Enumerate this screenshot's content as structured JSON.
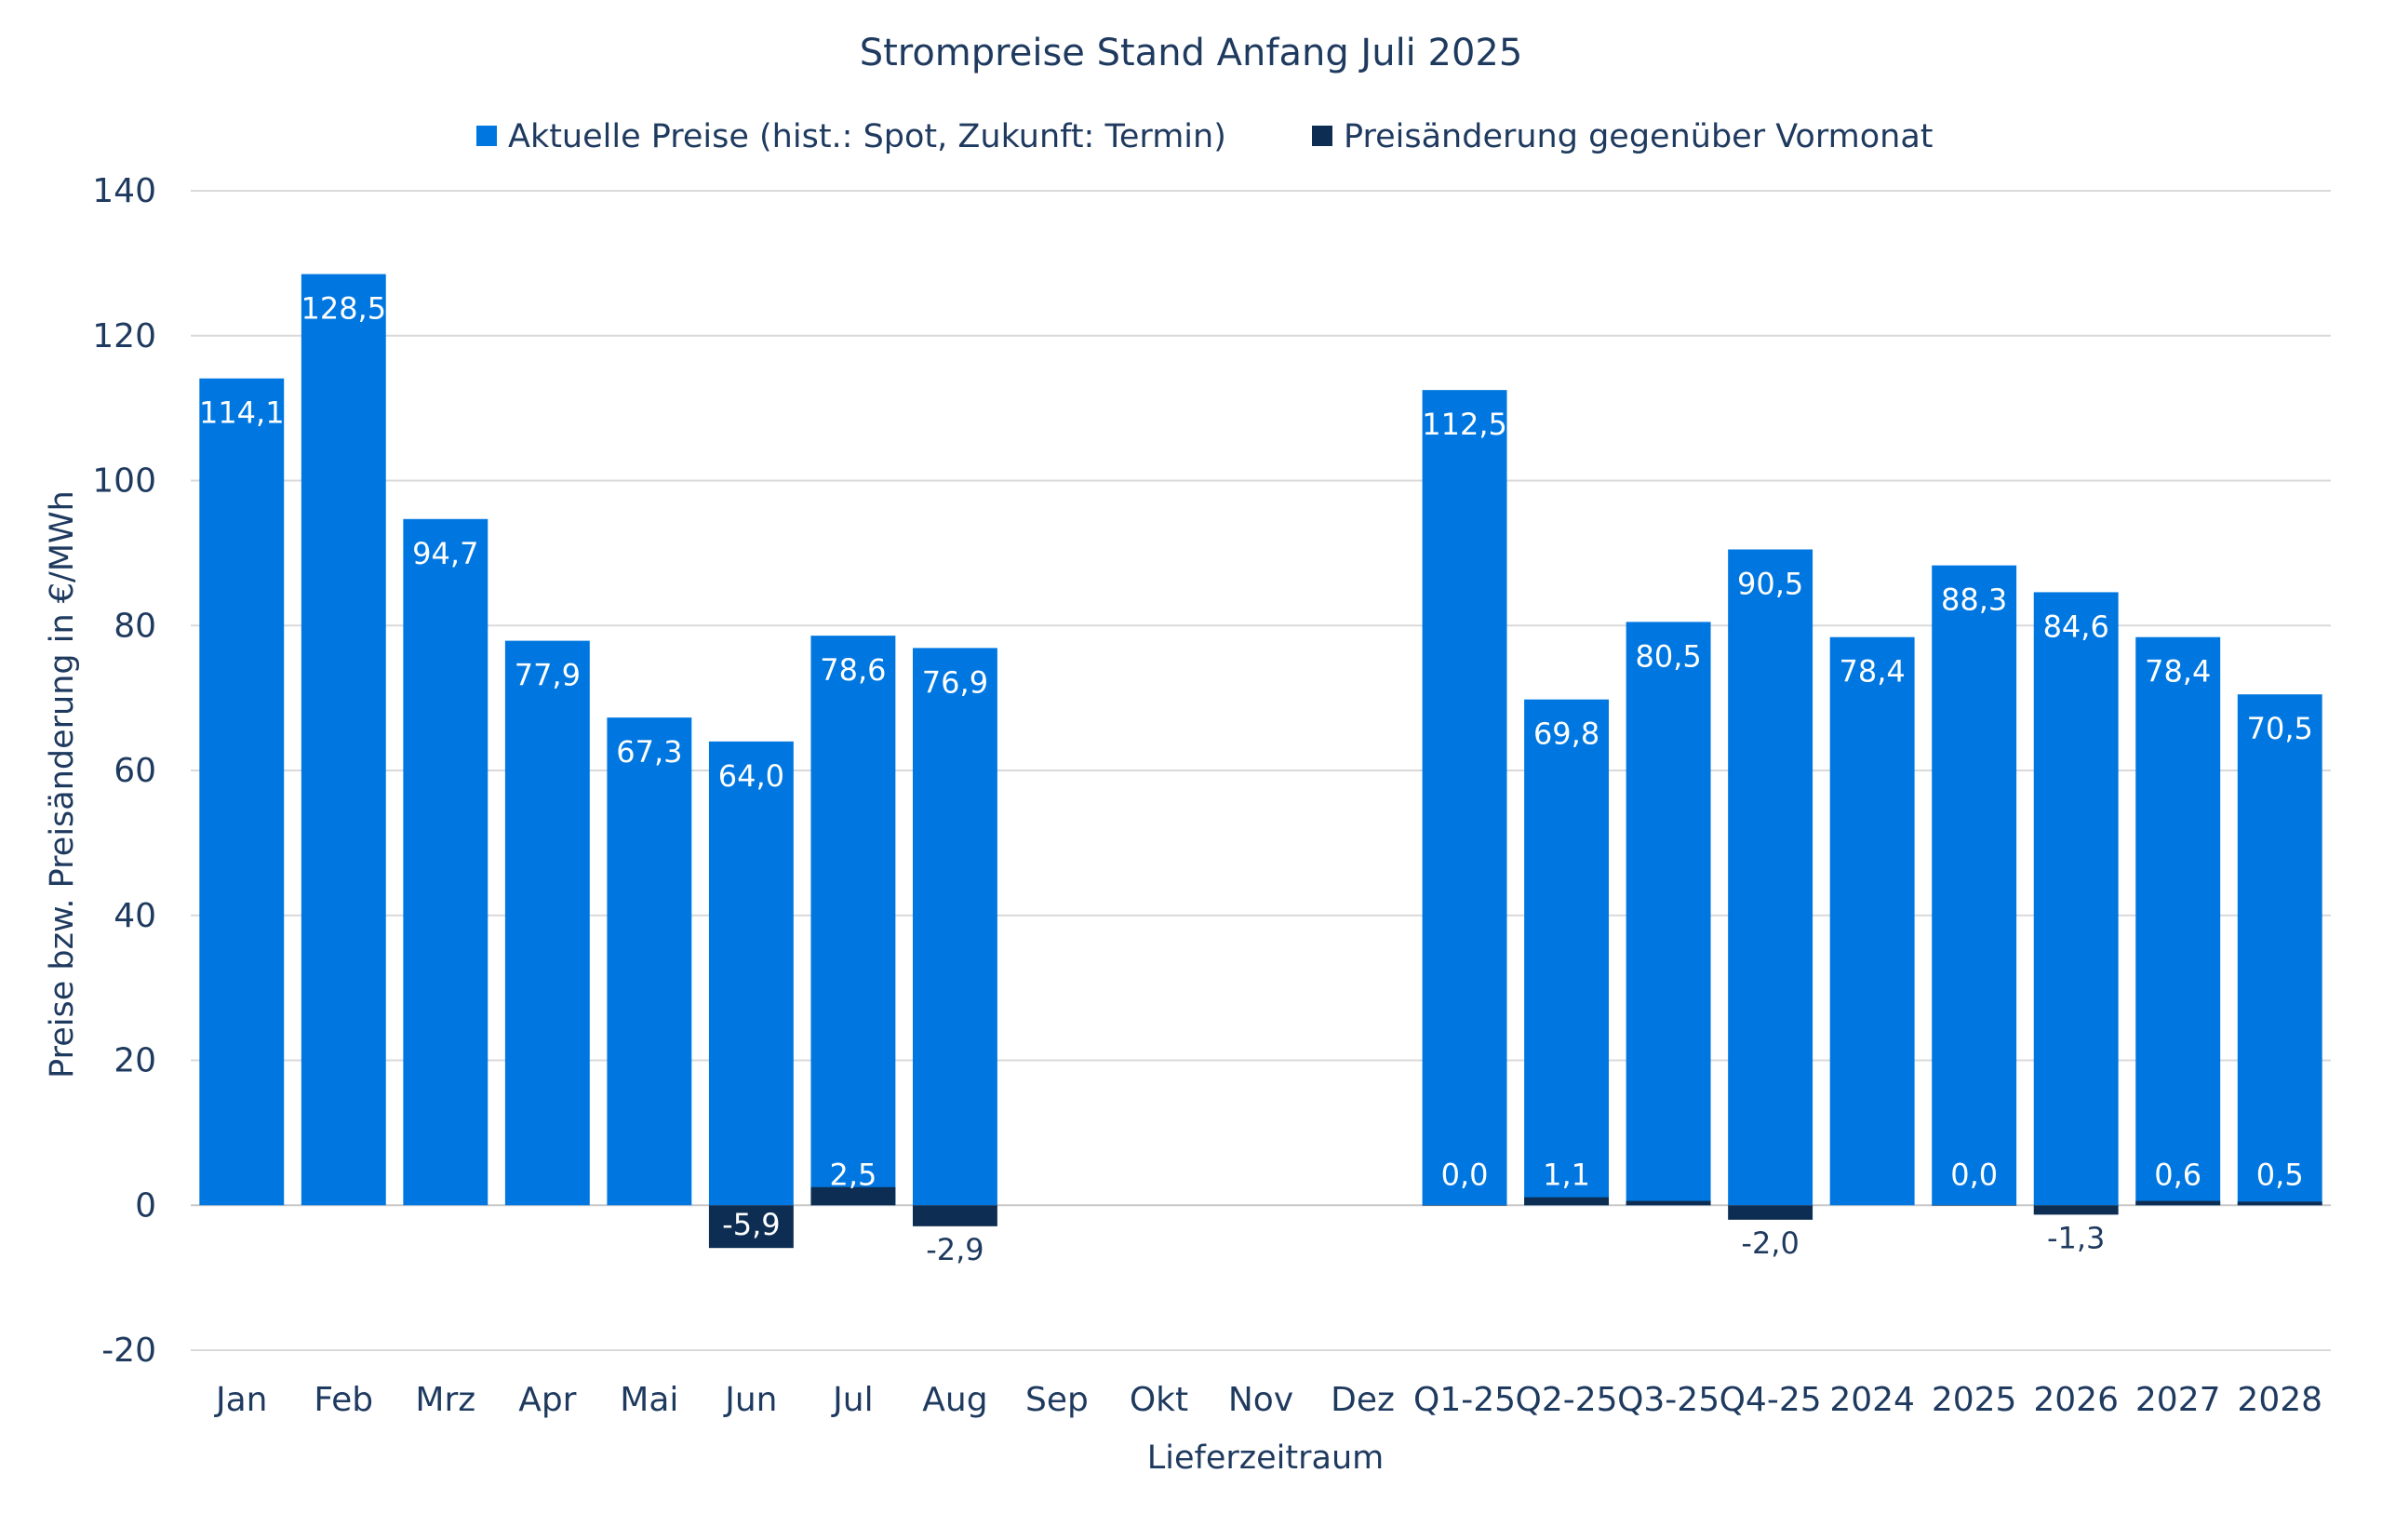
{
  "chart_data": {
    "type": "bar",
    "title": "Strompreise Stand Anfang Juli 2025",
    "xlabel": "Lieferzeitraum",
    "ylabel": "Preise bzw. Preisänderung in €/MWh",
    "ylim": [
      -20,
      140
    ],
    "yticks": [
      -20,
      0,
      20,
      40,
      60,
      80,
      100,
      120,
      140
    ],
    "grid": true,
    "legend_position": "top",
    "categories": [
      "Jan",
      "Feb",
      "Mrz",
      "Apr",
      "Mai",
      "Jun",
      "Jul",
      "Aug",
      "Sep",
      "Okt",
      "Nov",
      "Dez",
      "Q1-25",
      "Q2-25",
      "Q3-25",
      "Q4-25",
      "2024",
      "2025",
      "2026",
      "2027",
      "2028"
    ],
    "series": [
      {
        "name": "Aktuelle Preise (hist.: Spot, Zukunft: Termin)",
        "color": "#0077e0",
        "values": [
          114.1,
          128.5,
          94.7,
          77.9,
          67.3,
          64.0,
          78.6,
          76.9,
          null,
          null,
          null,
          null,
          112.5,
          69.8,
          80.5,
          90.5,
          78.4,
          88.3,
          84.6,
          78.4,
          70.5
        ],
        "labels": [
          "114,1",
          "128,5",
          "94,7",
          "77,9",
          "67,3",
          "64,0",
          "78,6",
          "76,9",
          "",
          "",
          "",
          "",
          "112,5",
          "69,8",
          "80,5",
          "90,5",
          "78,4",
          "88,3",
          "84,6",
          "78,4",
          "70,5"
        ]
      },
      {
        "name": "Preisänderung gegenüber Vormonat",
        "color": "#0d2e52",
        "values": [
          null,
          null,
          null,
          null,
          null,
          -5.9,
          2.5,
          -2.9,
          null,
          null,
          null,
          null,
          0.0,
          1.1,
          0.6,
          -2.0,
          null,
          0.0,
          -1.3,
          0.6,
          0.5
        ],
        "labels": [
          "",
          "",
          "",
          "",
          "",
          "-5,9",
          "2,5",
          "-2,9",
          "",
          "",
          "",
          "",
          "0,0",
          "1,1",
          "",
          "-2,0",
          "",
          "0,0",
          "-1,3",
          "0,6",
          "0,5"
        ]
      }
    ]
  }
}
